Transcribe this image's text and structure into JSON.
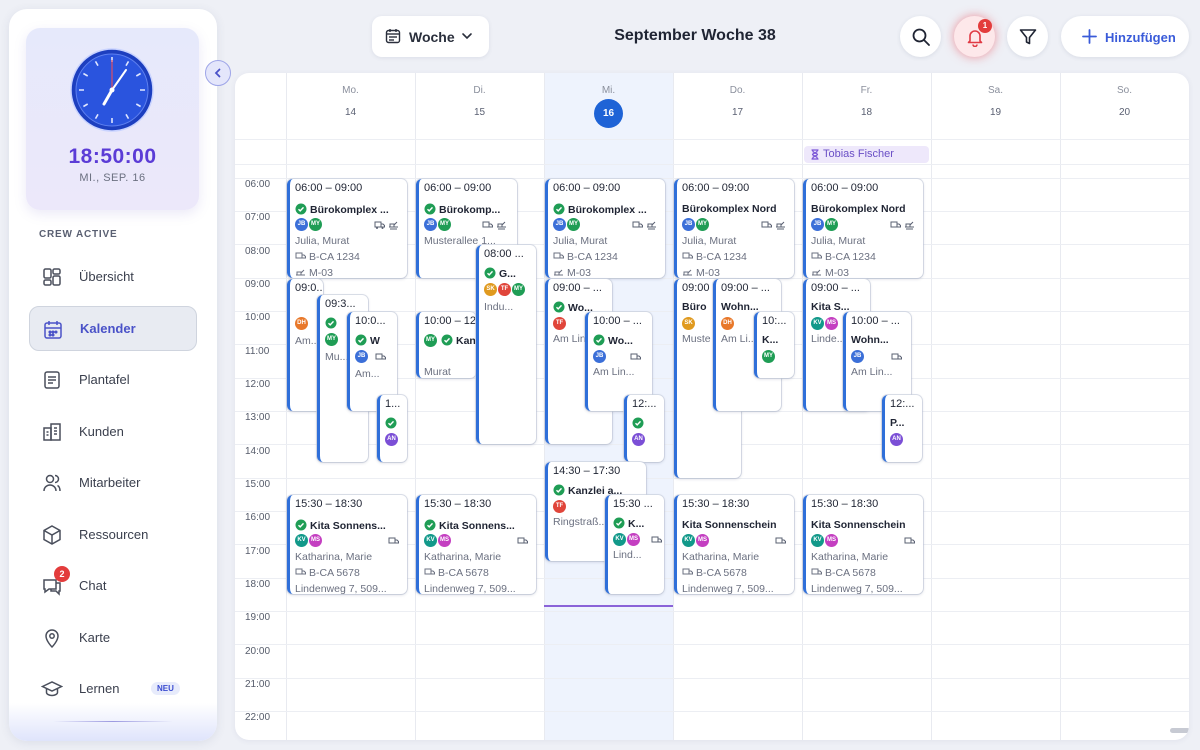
{
  "sidebar": {
    "clock": {
      "time": "18:50:00",
      "date": "MI., SEP. 16"
    },
    "crew_label": "CREW ACTIVE",
    "items": [
      {
        "label": "Übersicht"
      },
      {
        "label": "Kalender"
      },
      {
        "label": "Plantafel"
      },
      {
        "label": "Kunden"
      },
      {
        "label": "Mitarbeiter"
      },
      {
        "label": "Ressourcen"
      },
      {
        "label": "Chat",
        "badge": "2"
      },
      {
        "label": "Karte"
      },
      {
        "label": "Lernen",
        "tag": "NEU"
      }
    ]
  },
  "topbar": {
    "view_label": "Woche",
    "week_title": "September Woche 38",
    "notification_count": "1",
    "add_label": "Hinzufügen"
  },
  "calendar": {
    "days": [
      {
        "name": "Mo.",
        "date": "14"
      },
      {
        "name": "Di.",
        "date": "15"
      },
      {
        "name": "Mi.",
        "date": "16"
      },
      {
        "name": "Do.",
        "date": "17"
      },
      {
        "name": "Fr.",
        "date": "18"
      },
      {
        "name": "Sa.",
        "date": "19"
      },
      {
        "name": "So.",
        "date": "20"
      }
    ],
    "hours": [
      "06:00",
      "07:00",
      "08:00",
      "09:00",
      "10:00",
      "11:00",
      "12:00",
      "13:00",
      "14:00",
      "15:00",
      "16:00",
      "17:00",
      "18:00",
      "19:00",
      "20:00",
      "21:00",
      "22:00"
    ],
    "absence": "Tobias Fischer",
    "events": {
      "mo1": {
        "time": "06:00 – 09:00",
        "title": "Bürokomplex ...",
        "crew": "Julia, Murat",
        "vehicle": "B-CA 1234",
        "machine": "M-03"
      },
      "mo2": {
        "time": "09:0...",
        "text": "Am..."
      },
      "mo3": {
        "time": "09:3...",
        "text": "Mu..."
      },
      "mo4": {
        "time": "10:0...",
        "title": "W",
        "text": "Am..."
      },
      "mo5": {
        "time": "1..."
      },
      "mo6": {
        "time": "15:30 – 18:30",
        "title": "Kita Sonnens...",
        "crew": "Katharina, Marie",
        "vehicle": "B-CA 5678",
        "address": "Lindenweg 7, 509..."
      },
      "di1": {
        "time": "06:00 – 09:00",
        "title": "Bürokomp...",
        "address": "Musterallee 1..."
      },
      "di2": {
        "time": "10:00 – 12:...",
        "title": "Kanzl",
        "text": "Murat"
      },
      "di3": {
        "time": "08:00 ...",
        "title": "G...",
        "text": "Indu..."
      },
      "di4": {
        "time": "15:30 – 18:30",
        "title": "Kita Sonnens...",
        "crew": "Katharina, Marie",
        "vehicle": "B-CA 5678",
        "address": "Lindenweg 7, 509..."
      },
      "mi1": {
        "time": "06:00 – 09:00",
        "title": "Bürokomplex ...",
        "crew": "Julia, Murat",
        "vehicle": "B-CA 1234",
        "machine": "M-03"
      },
      "mi2": {
        "time": "09:00 – ...",
        "title": "Wo...",
        "text": "Am Lin..."
      },
      "mi3": {
        "time": "10:00 – ...",
        "title": "Wo...",
        "text": "Am Lin..."
      },
      "mi4": {
        "time": "12:..."
      },
      "mi5": {
        "time": "14:30 – 17:30",
        "title": "Kanzlei a...",
        "text": "Ringstraß..."
      },
      "mi6": {
        "time": "15:30 ...",
        "title": "K...",
        "text": "Lind..."
      },
      "do1": {
        "time": "06:00 – 09:00",
        "title": "Bürokomplex Nord",
        "crew": "Julia, Murat",
        "vehicle": "B-CA 1234",
        "machine": "M-03"
      },
      "do2": {
        "time": "09:00",
        "title": "Büro",
        "text": "Muste"
      },
      "do3": {
        "time": "09:00 – ...",
        "title": "Wohn...",
        "text": "Am Li..."
      },
      "do4": {
        "time": "10:...",
        "title": "K..."
      },
      "do5": {
        "time": "15:30 – 18:30",
        "title": "Kita Sonnenschein",
        "crew": "Katharina, Marie",
        "vehicle": "B-CA 5678",
        "address": "Lindenweg 7, 509..."
      },
      "fr1": {
        "time": "06:00 – 09:00",
        "title": "Bürokomplex Nord",
        "crew": "Julia, Murat",
        "vehicle": "B-CA 1234",
        "machine": "M-03"
      },
      "fr2": {
        "time": "09:00 – ...",
        "title": "Kita S...",
        "text": "Linde..."
      },
      "fr3": {
        "time": "10:00 – ...",
        "title": "Wohn...",
        "text": "Am Lin..."
      },
      "fr4": {
        "time": "12:...",
        "title": "P..."
      },
      "fr5": {
        "time": "15:30 – 18:30",
        "title": "Kita Sonnenschein",
        "crew": "Katharina, Marie",
        "vehicle": "B-CA 5678",
        "address": "Lindenweg 7, 509..."
      }
    }
  },
  "avatars": {
    "JB": "#3b6fd8",
    "MY": "#1f9d55",
    "DH": "#e8782a",
    "SK": "#e09a1f",
    "TF": "#e0453a",
    "AN": "#7b4fd6",
    "KV": "#12998a",
    "MS": "#c43fc1"
  }
}
